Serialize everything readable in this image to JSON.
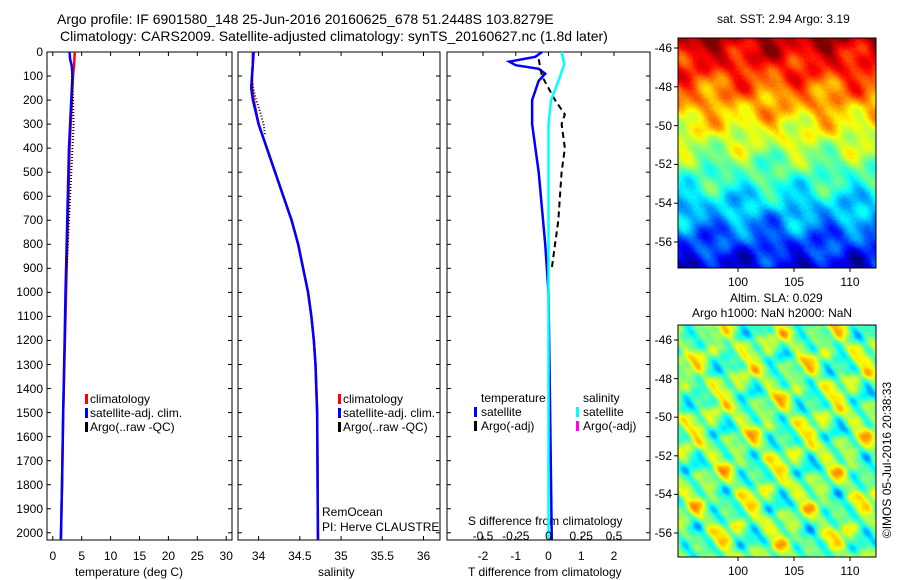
{
  "title": {
    "line1": "Argo profile: IF 6901580_148 25-Jun-2016 20160625_678 51.2448S 103.8279E",
    "line2": "Climatology: CARS2009. Satellite-adjusted climatology: synTS_20160627.nc (1.8d later)"
  },
  "timestamp": "©IMOS 05-Jul-2016 20:38:33",
  "colors": {
    "climatology": "#ff0000",
    "satellite": "#0000ff",
    "argo": "#000000",
    "sal_sat": "#00ffff",
    "sal_argo": "#ff00ff"
  },
  "chart_data": [
    {
      "type": "line",
      "name": "temperature",
      "xlabel": "temperature (deg C)",
      "ylabel": "",
      "xlim": [
        -1,
        31
      ],
      "ylim": [
        2030,
        0
      ],
      "xticks": [
        "0",
        "5",
        "10",
        "15",
        "20",
        "25",
        "30"
      ],
      "xtick_values": [
        0,
        5,
        10,
        15,
        20,
        25,
        30
      ],
      "yticks": [
        "0",
        "100",
        "200",
        "300",
        "400",
        "500",
        "600",
        "700",
        "800",
        "900",
        "1000",
        "1100",
        "1200",
        "1300",
        "1400",
        "1500",
        "1600",
        "1700",
        "1800",
        "1900",
        "2000"
      ],
      "legend": [
        "climatology",
        "satellite-adj. clim.",
        "Argo(..raw -QC)"
      ],
      "series": [
        {
          "name": "climatology",
          "color": "#ff0000",
          "depth": [
            0,
            50,
            100,
            200,
            300,
            400,
            600,
            800,
            1000,
            1200,
            1500,
            1800,
            2030
          ],
          "values": [
            3.8,
            3.7,
            3.5,
            3.3,
            3.1,
            2.9,
            2.7,
            2.5,
            2.3,
            2.1,
            1.8,
            1.6,
            1.4
          ]
        },
        {
          "name": "satellite-adj. clim.",
          "color": "#0000ff",
          "depth": [
            0,
            30,
            60,
            100,
            200,
            300,
            400,
            600,
            800,
            1000,
            1200,
            1500,
            1800,
            2030
          ],
          "values": [
            2.9,
            3.0,
            3.3,
            3.4,
            3.2,
            3.0,
            2.8,
            2.6,
            2.4,
            2.2,
            2.05,
            1.8,
            1.6,
            1.4
          ]
        },
        {
          "name": "Argo",
          "color": "#000000",
          "depth": [
            100,
            200,
            300,
            400,
            500,
            600,
            700,
            800,
            900
          ],
          "values": [
            3.3,
            3.5,
            3.6,
            3.4,
            3.2,
            3.0,
            2.8,
            2.6,
            2.4
          ]
        }
      ]
    },
    {
      "type": "line",
      "name": "salinity",
      "xlabel": "salinity",
      "xlim": [
        33.75,
        36.2
      ],
      "ylim": [
        2030,
        0
      ],
      "xticks": [
        "34",
        "34.5",
        "35",
        "35.5",
        "36"
      ],
      "xtick_values": [
        34,
        34.5,
        35,
        35.5,
        36
      ],
      "legend": [
        "climatology",
        "satellite-adj. clim.",
        "Argo(..raw -QC)"
      ],
      "annotation": [
        "RemOcean",
        "PI: Herve CLAUSTRE"
      ],
      "series": [
        {
          "name": "climatology",
          "color": "#ff0000",
          "depth": [
            0,
            50,
            100,
            150,
            200,
            300,
            400,
            500,
            600,
            700,
            800,
            900,
            1000,
            1100,
            1200,
            1300,
            1500,
            2030
          ],
          "values": [
            33.93,
            33.93,
            33.92,
            33.92,
            33.94,
            34.0,
            34.1,
            34.2,
            34.3,
            34.4,
            34.48,
            34.54,
            34.6,
            34.64,
            34.67,
            34.69,
            34.71,
            34.72
          ]
        },
        {
          "name": "satellite-adj. clim.",
          "color": "#0000ff",
          "depth": [
            0,
            50,
            100,
            150,
            200,
            300,
            400,
            500,
            600,
            700,
            800,
            900,
            1000,
            1100,
            1200,
            1300,
            1500,
            2030
          ],
          "values": [
            33.94,
            33.93,
            33.92,
            33.91,
            33.93,
            34.0,
            34.1,
            34.2,
            34.3,
            34.4,
            34.48,
            34.54,
            34.6,
            34.64,
            34.67,
            34.69,
            34.71,
            34.72
          ]
        },
        {
          "name": "Argo",
          "color": "#000000",
          "depth": [
            120,
            160,
            200,
            250,
            300,
            350
          ],
          "values": [
            33.92,
            33.94,
            33.97,
            34.02,
            34.06,
            34.08
          ]
        }
      ]
    },
    {
      "type": "line",
      "name": "difference",
      "xlabel": "T difference from climatology",
      "x2label": "S difference from climatology",
      "xlim": [
        -3.1,
        3.1
      ],
      "ylim": [
        2030,
        0
      ],
      "xticks": [
        "-2",
        "-1",
        "0",
        "1",
        "2"
      ],
      "xtick_values": [
        -2,
        -1,
        0,
        1,
        2
      ],
      "x2ticks": [
        "-0.5",
        "-0.25",
        "0",
        "0.25",
        "0.5"
      ],
      "x2tick_values": [
        -0.5,
        -0.25,
        0,
        0.25,
        0.5
      ],
      "legend_titles": [
        "temperature",
        "salinity"
      ],
      "legend": [
        "satellite",
        "Argo(-adj)",
        "satellite",
        "Argo(-adj)"
      ],
      "series": [
        {
          "name": "T satellite",
          "color": "#0000ff",
          "depth": [
            0,
            20,
            40,
            55,
            70,
            90,
            120,
            200,
            300,
            500,
            800,
            1000,
            1500,
            2030
          ],
          "values": [
            -0.2,
            -0.4,
            -1.2,
            -1.0,
            -0.3,
            -0.1,
            -0.3,
            -0.5,
            -0.5,
            -0.3,
            -0.1,
            0,
            0.05,
            0.1
          ]
        },
        {
          "name": "T Argo(-adj)",
          "color": "#000000",
          "dash": true,
          "depth": [
            30,
            100,
            200,
            260,
            300,
            400,
            500,
            600,
            700,
            800,
            900
          ],
          "values": [
            -0.3,
            -0.2,
            0.2,
            0.5,
            0.4,
            0.5,
            0.4,
            0.35,
            0.3,
            0.2,
            0.1
          ]
        },
        {
          "name": "S satellite",
          "color": "#00ffff",
          "depth": [
            0,
            50,
            100,
            200,
            300,
            500,
            1000,
            2030
          ],
          "values": [
            0.1,
            0.12,
            0.09,
            0.02,
            0.0,
            0.0,
            0.0,
            0.0
          ],
          "scale": 4
        }
      ]
    }
  ],
  "maps": [
    {
      "title": "sat. SST: 2.94 Argo: 3.19",
      "lat_ticks": [
        "-46",
        "-48",
        "-50",
        "-52",
        "-54",
        "-56"
      ],
      "lon_ticks": [
        "100",
        "105",
        "110"
      ],
      "kind": "sst"
    },
    {
      "title": "Altim. SLA: 0.029",
      "title2": "Argo h1000: NaN h2000: NaN",
      "lat_ticks": [
        "-46",
        "-48",
        "-50",
        "-52",
        "-54",
        "-56"
      ],
      "lon_ticks": [
        "100",
        "105",
        "110"
      ],
      "kind": "sla"
    }
  ]
}
